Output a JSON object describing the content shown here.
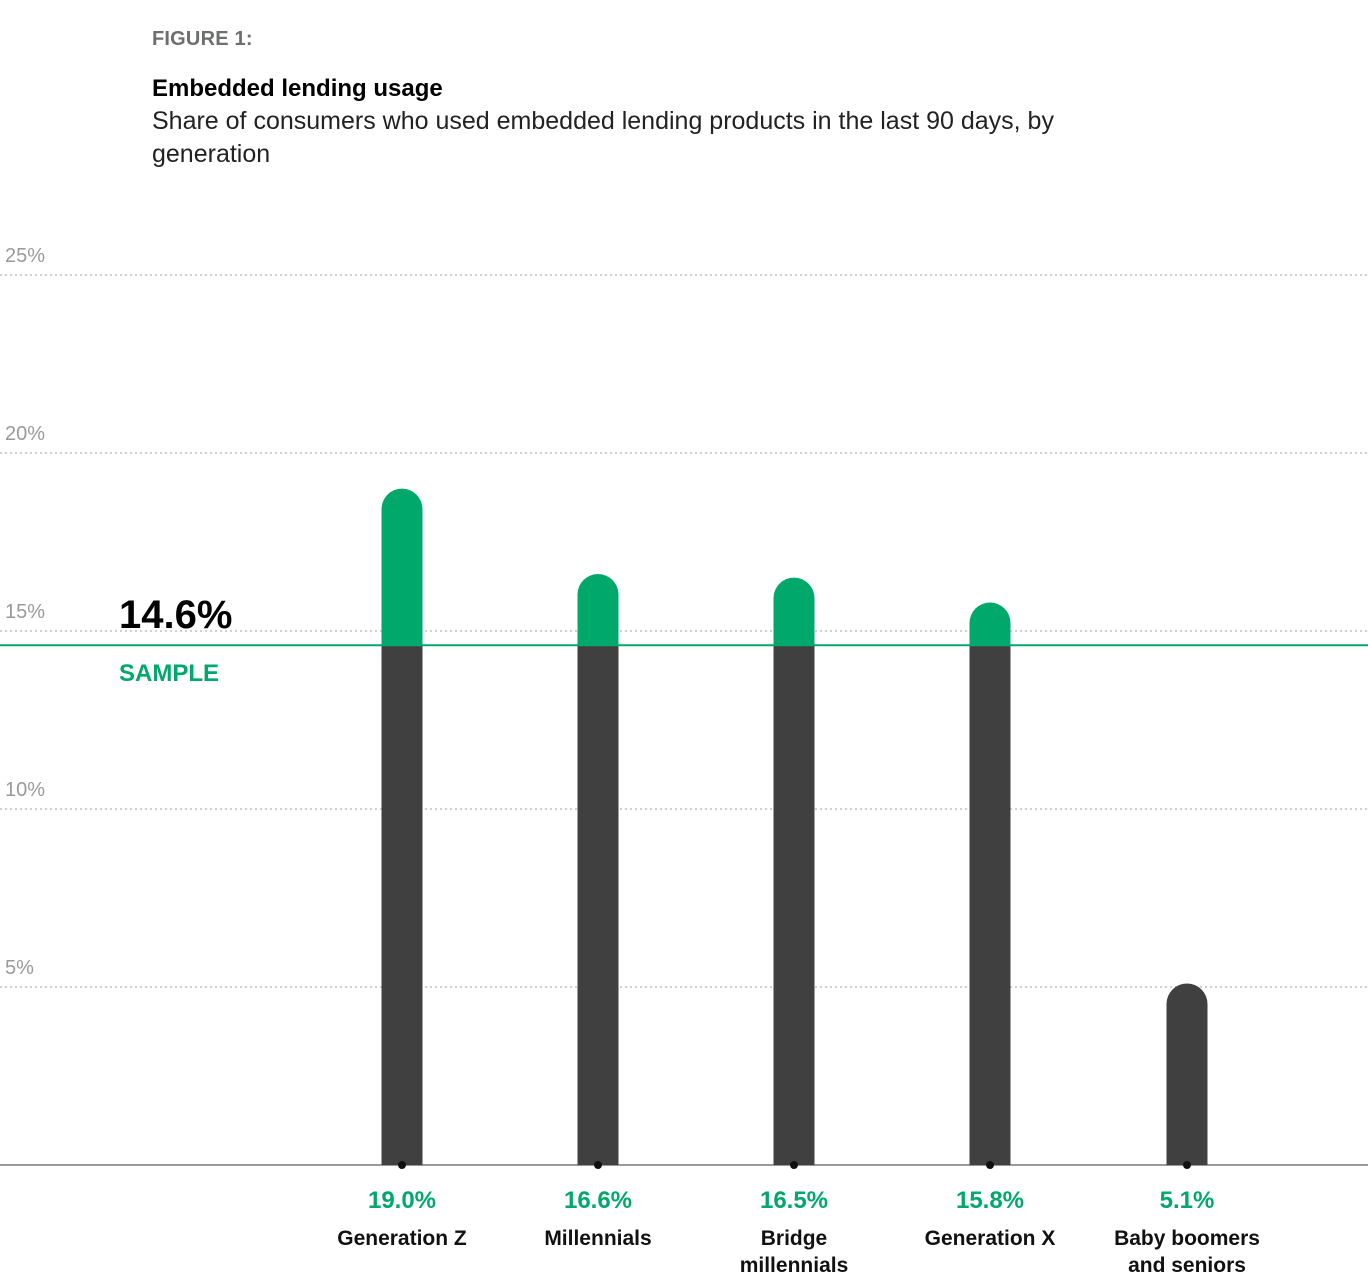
{
  "header": {
    "figure_label": "FIGURE 1:",
    "title": "Embedded lending usage",
    "subtitle": "Share of consumers who used embedded lending products in the last 90 days, by generation"
  },
  "colors": {
    "above_reference": "#00a86b",
    "below_reference": "#404041",
    "gridline": "#b5b5b5",
    "axis": "#777777"
  },
  "chart_data": {
    "type": "bar",
    "categories": [
      [
        "Generation Z"
      ],
      [
        "Millennials"
      ],
      [
        "Bridge",
        "millennials"
      ],
      [
        "Generation X"
      ],
      [
        "Baby boomers",
        "and seniors"
      ]
    ],
    "values": [
      19.0,
      16.6,
      16.5,
      15.8,
      5.1
    ],
    "value_labels": [
      "19.0%",
      "16.6%",
      "16.5%",
      "15.8%",
      "5.1%"
    ],
    "ylim": [
      0,
      25
    ],
    "yticks": [
      5,
      10,
      15,
      20,
      25
    ],
    "ytick_labels": [
      "5%",
      "10%",
      "15%",
      "20%",
      "25%"
    ],
    "grid": true,
    "reference_line": {
      "value": 14.6,
      "value_label": "14.6%",
      "label": "SAMPLE"
    }
  }
}
